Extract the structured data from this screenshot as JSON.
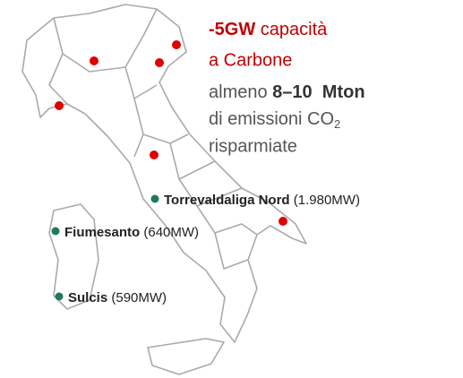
{
  "headline": {
    "amount": "-5GW",
    "text": "capacità",
    "line2": "a Carbone"
  },
  "note": {
    "prefix": "almeno",
    "range": "8–10  Mton",
    "line2": "di emissioni CO",
    "subscript": "2",
    "line3": "risparmiate"
  },
  "plants": [
    {
      "name": "Torrevaldaliga Nord",
      "capacity": "(1.980MW)"
    },
    {
      "name": "Fiumesanto",
      "capacity": "(640MW)"
    },
    {
      "name": "Sulcis",
      "capacity": "(590MW)"
    }
  ]
}
